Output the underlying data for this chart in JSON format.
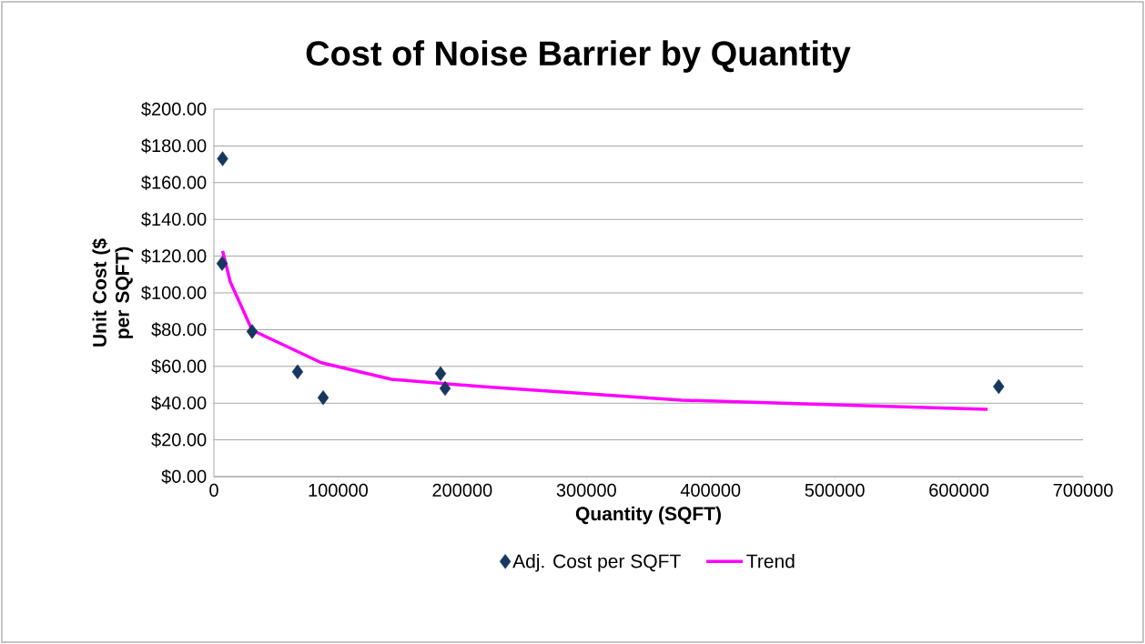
{
  "chart_data": {
    "type": "scatter",
    "title": "Cost of Noise Barrier by Quantity",
    "xlabel": "Quantity (SQFT)",
    "ylabel": "Unit Cost ($ per SQFT)",
    "xlim": [
      0,
      700000
    ],
    "xticks": [
      0,
      100000,
      200000,
      300000,
      400000,
      500000,
      600000,
      700000
    ],
    "ylim": [
      0,
      200
    ],
    "yticks": [
      {
        "value": 0,
        "label": "$0.00"
      },
      {
        "value": 20,
        "label": "$20.00"
      },
      {
        "value": 40,
        "label": "$40.00"
      },
      {
        "value": 60,
        "label": "$60.00"
      },
      {
        "value": 80,
        "label": "$80.00"
      },
      {
        "value": 100,
        "label": "$100.00"
      },
      {
        "value": 120,
        "label": "$120.00"
      },
      {
        "value": 140,
        "label": "$140.00"
      },
      {
        "value": 160,
        "label": "$160.00"
      },
      {
        "value": 180,
        "label": "$180.00"
      },
      {
        "value": 200,
        "label": "$200.00"
      }
    ],
    "grid": "y",
    "legend": "bottom",
    "series": [
      {
        "name": "Adj. Cost per SQFT",
        "marker": "diamond",
        "color": "#17375e",
        "x": [
          7000,
          6600,
          30800,
          67400,
          88000,
          182500,
          186200,
          632000
        ],
        "values": [
          173,
          116,
          79,
          57,
          43,
          56,
          48,
          49
        ]
      },
      {
        "name": "Trend",
        "type": "line",
        "marker": "none",
        "line_style": "solid",
        "color": "#ff00ff",
        "x": [
          7000,
          13200,
          30800,
          86500,
          143000,
          216000,
          377000,
          524000,
          623000
        ],
        "values": [
          122.8,
          106,
          79.7,
          62,
          53,
          49,
          41.6,
          38.6,
          36.6
        ]
      }
    ]
  }
}
